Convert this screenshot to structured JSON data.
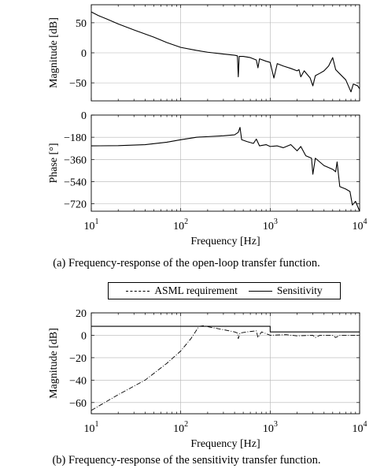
{
  "captions": {
    "a": "(a) Frequency-response of the open-loop transfer function.",
    "b": "(b) Frequency-response of the sensitivity transfer function."
  },
  "legend": {
    "requirement": "ASML requirement",
    "sensitivity": "Sensitivity"
  },
  "chart_data": [
    {
      "type": "line",
      "subplot": "open-loop magnitude",
      "ylabel": "Magnitude [dB]",
      "xscale": "log",
      "xlim": [
        10,
        10000
      ],
      "ylim": [
        -80,
        80
      ],
      "yticks": [
        50,
        0,
        -50
      ],
      "grid": true,
      "series": [
        {
          "values": [
            [
              10,
              68
            ],
            [
              12,
              62
            ],
            [
              15,
              56
            ],
            [
              20,
              48
            ],
            [
              30,
              38
            ],
            [
              50,
              26
            ],
            [
              70,
              17
            ],
            [
              100,
              9
            ],
            [
              150,
              4
            ],
            [
              200,
              1
            ],
            [
              300,
              -2
            ],
            [
              400,
              -4
            ],
            [
              430,
              -5
            ],
            [
              440,
              -40
            ],
            [
              450,
              -6
            ],
            [
              500,
              -6
            ],
            [
              600,
              -8
            ],
            [
              700,
              -12
            ],
            [
              730,
              -25
            ],
            [
              760,
              -10
            ],
            [
              900,
              -14
            ],
            [
              1000,
              -16
            ],
            [
              1100,
              -42
            ],
            [
              1200,
              -18
            ],
            [
              1400,
              -22
            ],
            [
              1700,
              -26
            ],
            [
              2000,
              -30
            ],
            [
              2100,
              -28
            ],
            [
              2200,
              -40
            ],
            [
              2400,
              -30
            ],
            [
              2800,
              -42
            ],
            [
              3000,
              -55
            ],
            [
              3200,
              -38
            ],
            [
              3600,
              -34
            ],
            [
              4000,
              -30
            ],
            [
              4500,
              -22
            ],
            [
              5000,
              -8
            ],
            [
              5400,
              -28
            ],
            [
              6000,
              -35
            ],
            [
              7000,
              -45
            ],
            [
              8000,
              -65
            ],
            [
              8500,
              -52
            ],
            [
              9500,
              -55
            ],
            [
              10000,
              -60
            ]
          ]
        }
      ]
    },
    {
      "type": "line",
      "subplot": "open-loop phase",
      "ylabel": "Phase [°]",
      "xlabel": "Frequency [Hz]",
      "xscale": "log",
      "xlim": [
        10,
        10000
      ],
      "ylim": [
        -780,
        0
      ],
      "yticks": [
        0,
        -180,
        -360,
        -540,
        -720
      ],
      "xtick_labels": [
        "10^1",
        "10^2",
        "10^3",
        "10^4"
      ],
      "grid": true,
      "series": [
        {
          "values": [
            [
              10,
              -250
            ],
            [
              20,
              -248
            ],
            [
              40,
              -240
            ],
            [
              70,
              -220
            ],
            [
              100,
              -200
            ],
            [
              150,
              -180
            ],
            [
              200,
              -175
            ],
            [
              300,
              -168
            ],
            [
              400,
              -160
            ],
            [
              440,
              -140
            ],
            [
              460,
              -100
            ],
            [
              480,
              -200
            ],
            [
              550,
              -215
            ],
            [
              650,
              -230
            ],
            [
              700,
              -195
            ],
            [
              760,
              -250
            ],
            [
              900,
              -240
            ],
            [
              1000,
              -255
            ],
            [
              1200,
              -250
            ],
            [
              1400,
              -265
            ],
            [
              1700,
              -240
            ],
            [
              2000,
              -290
            ],
            [
              2200,
              -255
            ],
            [
              2500,
              -330
            ],
            [
              2900,
              -350
            ],
            [
              3000,
              -480
            ],
            [
              3200,
              -350
            ],
            [
              4000,
              -410
            ],
            [
              5000,
              -440
            ],
            [
              5400,
              -460
            ],
            [
              5600,
              -380
            ],
            [
              6000,
              -580
            ],
            [
              7000,
              -600
            ],
            [
              7800,
              -620
            ],
            [
              8300,
              -730
            ],
            [
              9000,
              -700
            ],
            [
              10000,
              -780
            ]
          ]
        }
      ]
    },
    {
      "type": "line",
      "subplot": "sensitivity",
      "ylabel": "Magnitude [dB]",
      "xlabel": "Frequency [Hz]",
      "xscale": "log",
      "xlim": [
        10,
        10000
      ],
      "ylim": [
        -70,
        20
      ],
      "yticks": [
        20,
        0,
        -20,
        -40,
        -60
      ],
      "xtick_labels": [
        "10^1",
        "10^2",
        "10^3",
        "10^4"
      ],
      "grid": true,
      "series": [
        {
          "name": "ASML requirement",
          "values": [
            [
              10,
              8
            ],
            [
              1000,
              8
            ],
            [
              1000,
              3
            ],
            [
              10000,
              3
            ]
          ]
        },
        {
          "name": "Sensitivity",
          "values": [
            [
              10,
              -67
            ],
            [
              20,
              -53
            ],
            [
              40,
              -40
            ],
            [
              70,
              -25
            ],
            [
              100,
              -14
            ],
            [
              130,
              -3
            ],
            [
              160,
              8
            ],
            [
              180,
              8.5
            ],
            [
              220,
              7
            ],
            [
              300,
              5
            ],
            [
              400,
              3
            ],
            [
              430,
              2
            ],
            [
              440,
              -3
            ],
            [
              460,
              2
            ],
            [
              550,
              3
            ],
            [
              700,
              4
            ],
            [
              730,
              -2
            ],
            [
              800,
              3
            ],
            [
              1000,
              0
            ],
            [
              1500,
              0.5
            ],
            [
              2000,
              -0.5
            ],
            [
              3000,
              0
            ],
            [
              3200,
              -2
            ],
            [
              3600,
              0
            ],
            [
              5000,
              0
            ],
            [
              5400,
              -2
            ],
            [
              6000,
              0
            ],
            [
              8000,
              0
            ],
            [
              10000,
              0
            ]
          ]
        }
      ]
    }
  ]
}
